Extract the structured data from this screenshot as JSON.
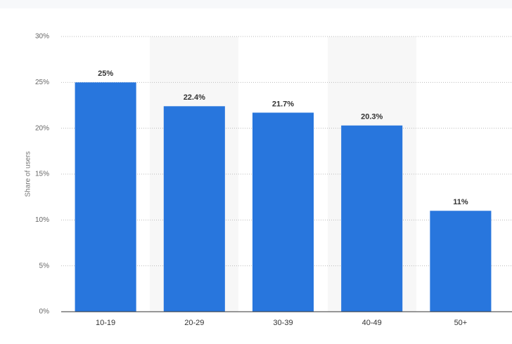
{
  "chart_data": {
    "type": "bar",
    "y_label": "Share of users",
    "categories": [
      "10-19",
      "20-29",
      "30-39",
      "40-49",
      "50+"
    ],
    "values": [
      25,
      22.4,
      21.7,
      20.3,
      11
    ],
    "value_labels": [
      "25%",
      "22.4%",
      "21.7%",
      "20.3%",
      "11%"
    ],
    "color": "#2876dd",
    "ylim": [
      0,
      30
    ],
    "yticks": [
      {
        "value": 0,
        "label": "0%"
      },
      {
        "value": 5,
        "label": "5%"
      },
      {
        "value": 10,
        "label": "10%"
      },
      {
        "value": 15,
        "label": "15%"
      },
      {
        "value": 20,
        "label": "20%"
      },
      {
        "value": 25,
        "label": "25%"
      },
      {
        "value": 30,
        "label": "30%"
      }
    ],
    "grid": true
  }
}
